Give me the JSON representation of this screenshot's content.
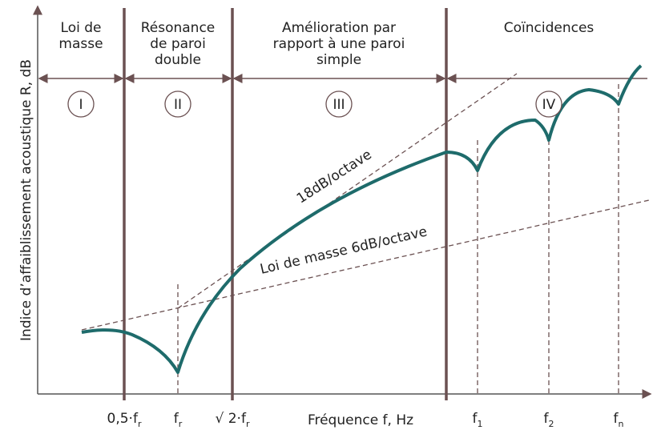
{
  "y_axis_label": "Indice d’affaiblissement acoustique R, dB",
  "x_axis_label": "Fréquence f, Hz",
  "regions": [
    {
      "lines": [
        "Loi de",
        "masse"
      ],
      "numeral": "I"
    },
    {
      "lines": [
        "Résonance",
        "de paroi",
        "double"
      ],
      "numeral": "II"
    },
    {
      "lines": [
        "Amélioration par",
        "rapport à une paroi",
        "simple"
      ],
      "numeral": "III"
    },
    {
      "lines": [
        "Coïncidences"
      ],
      "numeral": "IV"
    }
  ],
  "curve_labels": [
    "18dB/octave",
    "Loi de masse 6dB/octave"
  ],
  "x_ticks": [
    {
      "text": "0,5·f",
      "sub": "r"
    },
    {
      "text": "f",
      "sub": "r"
    },
    {
      "text": "√ 2·f",
      "sub": "r"
    },
    {
      "text": "f",
      "sub": "1"
    },
    {
      "text": "f",
      "sub": "2"
    },
    {
      "text": "f",
      "sub": "n"
    }
  ]
}
